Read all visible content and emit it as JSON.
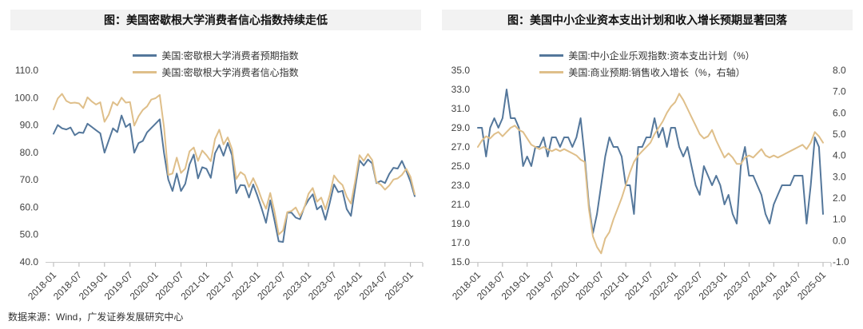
{
  "page": {
    "background": "#FFFFFF",
    "footer_source": "数据来源：Wind，广发证券发展研究中心"
  },
  "colors": {
    "blue": "#54779B",
    "gold": "#DFBF8A",
    "title_bar": "#F2F2F2",
    "axis_line": "#C9C9C9",
    "tick": "#B3B3B3",
    "text": "#3F3F3F"
  },
  "chart_data": [
    {
      "type": "line",
      "title": "图：美国密歇根大学消费者信心指数持续走低",
      "grid": false,
      "legend_position": "top-center",
      "x_monthly_start": "2018-01",
      "x_tick_every": 6,
      "x_tick_labels": [
        "2018-01",
        "2018-07",
        "2019-01",
        "2019-07",
        "2020-01",
        "2020-07",
        "2021-01",
        "2021-07",
        "2022-01",
        "2022-07",
        "2023-01",
        "2023-07",
        "2024-01",
        "2024-07",
        "2025-01"
      ],
      "left_axis": {
        "min": 40,
        "max": 110,
        "step": 10,
        "tick_labels": [
          "110.0",
          "100.0",
          "90.0",
          "80.0",
          "70.0",
          "60.0",
          "50.0",
          "40.0"
        ]
      },
      "right_axis": null,
      "series": [
        {
          "name": "美国:密歇根大学消费者预期指数",
          "axis": "left",
          "color_key": "blue",
          "values": [
            86.8,
            90.0,
            88.8,
            88.4,
            89.1,
            86.3,
            87.3,
            87.1,
            90.5,
            89.3,
            88.1,
            87.0,
            79.9,
            84.4,
            88.8,
            87.4,
            93.5,
            89.3,
            90.5,
            79.9,
            83.4,
            84.2,
            87.3,
            88.9,
            90.5,
            92.1,
            79.7,
            70.1,
            65.9,
            72.3,
            65.9,
            68.5,
            75.6,
            79.2,
            70.5,
            74.6,
            74.0,
            70.7,
            79.7,
            82.7,
            78.8,
            83.5,
            79.0,
            65.1,
            68.1,
            67.9,
            63.5,
            68.3,
            64.1,
            59.4,
            54.3,
            62.5,
            55.2,
            47.5,
            47.3,
            58.0,
            58.0,
            56.2,
            55.6,
            59.9,
            62.7,
            64.7,
            59.2,
            60.5,
            55.4,
            61.5,
            68.3,
            65.5,
            66.0,
            59.3,
            56.8,
            67.4,
            77.1,
            75.2,
            77.4,
            76.0,
            68.8,
            69.6,
            68.8,
            72.1,
            74.4,
            74.1,
            76.9,
            73.3,
            69.3,
            64.0
          ]
        },
        {
          "name": "美国:密歇根大学消费者信心指数",
          "axis": "left",
          "color_key": "gold",
          "values": [
            95.7,
            99.7,
            101.4,
            98.8,
            98.0,
            98.2,
            97.9,
            96.2,
            100.1,
            98.6,
            97.5,
            98.3,
            91.2,
            93.8,
            98.4,
            97.2,
            100.0,
            98.2,
            98.4,
            89.8,
            93.2,
            95.5,
            96.8,
            99.3,
            99.8,
            101.0,
            89.1,
            71.8,
            72.3,
            78.1,
            72.5,
            74.1,
            80.4,
            81.8,
            76.9,
            80.7,
            79.0,
            76.8,
            84.9,
            88.3,
            82.9,
            85.5,
            81.2,
            70.3,
            72.8,
            71.7,
            67.4,
            70.6,
            67.2,
            62.8,
            59.4,
            65.2,
            58.4,
            50.0,
            51.5,
            58.2,
            58.6,
            59.9,
            56.8,
            59.7,
            64.9,
            67.0,
            62.0,
            63.5,
            59.2,
            64.4,
            71.6,
            69.5,
            68.1,
            63.8,
            61.3,
            69.7,
            79.0,
            76.9,
            79.4,
            77.2,
            69.1,
            68.2,
            66.4,
            67.9,
            70.1,
            70.5,
            71.8,
            74.0,
            71.1,
            64.7
          ]
        }
      ]
    },
    {
      "type": "line",
      "title": "图：美国中小企业资本支出计划和收入增长预期显著回落",
      "grid": false,
      "legend_position": "top-center",
      "x_monthly_start": "2018-01",
      "x_tick_every": 6,
      "x_tick_labels": [
        "2018-01",
        "2018-07",
        "2019-01",
        "2019-07",
        "2020-01",
        "2020-07",
        "2021-01",
        "2021-07",
        "2022-01",
        "2022-07",
        "2023-01",
        "2023-07",
        "2024-01",
        "2024-07",
        "2025-01"
      ],
      "left_axis": {
        "min": 15,
        "max": 35,
        "step": 2,
        "tick_labels": [
          "35.0",
          "33.0",
          "31.0",
          "29.0",
          "27.0",
          "25.0",
          "23.0",
          "21.0",
          "19.0",
          "17.0",
          "15.0"
        ]
      },
      "right_axis": {
        "min": -1,
        "max": 8,
        "step": 1,
        "tick_labels": [
          "8.0",
          "7.0",
          "6.0",
          "5.0",
          "4.0",
          "3.0",
          "2.0",
          "1.0",
          "0.0",
          "-1.0"
        ]
      },
      "series": [
        {
          "name": "美国:中小企业乐观指数:资本支出计划（%）",
          "axis": "left",
          "color_key": "blue",
          "values": [
            29,
            29,
            26,
            29,
            30,
            29,
            30,
            33,
            30,
            30,
            29,
            25,
            26,
            25,
            27,
            27,
            28,
            26,
            28,
            28,
            27,
            28,
            28,
            27,
            28,
            30,
            26,
            21,
            18,
            20,
            23,
            26,
            28,
            27,
            27,
            26,
            23,
            23,
            20,
            27,
            27,
            28,
            28,
            30,
            28,
            29,
            27,
            29,
            29,
            27,
            26,
            27,
            25,
            23,
            22,
            25,
            24,
            23,
            24,
            23,
            21,
            22,
            20,
            19,
            25,
            27,
            24,
            24,
            23,
            22,
            20,
            19,
            21,
            22,
            23,
            23,
            23,
            24,
            24,
            24,
            19,
            23,
            28,
            27,
            20
          ]
        },
        {
          "name": "美国:商业预期:销售收入增长（%，右轴）",
          "axis": "right",
          "color_key": "gold",
          "values": [
            4.4,
            4.7,
            4.9,
            4.8,
            5.0,
            5.1,
            4.9,
            5.1,
            5.3,
            5.4,
            5.2,
            5.1,
            4.8,
            4.5,
            4.4,
            4.3,
            4.4,
            4.3,
            4.2,
            4.3,
            4.2,
            4.3,
            4.2,
            4.1,
            4.0,
            3.8,
            3.7,
            1.5,
            0.2,
            -0.3,
            -0.6,
            0.1,
            0.4,
            1.0,
            1.5,
            2.0,
            2.6,
            3.2,
            3.7,
            4.0,
            4.2,
            4.4,
            4.6,
            5.0,
            5.3,
            5.6,
            6.0,
            6.3,
            6.5,
            6.9,
            6.6,
            6.2,
            5.8,
            5.4,
            5.0,
            4.8,
            4.9,
            5.2,
            4.7,
            4.3,
            3.9,
            4.1,
            3.9,
            3.6,
            3.6,
            3.9,
            4.0,
            3.9,
            4.1,
            4.3,
            4.0,
            3.9,
            4.0,
            3.9,
            4.0,
            4.1,
            4.2,
            4.3,
            4.4,
            4.5,
            4.3,
            4.6,
            5.1,
            4.9,
            4.6
          ]
        }
      ]
    }
  ]
}
